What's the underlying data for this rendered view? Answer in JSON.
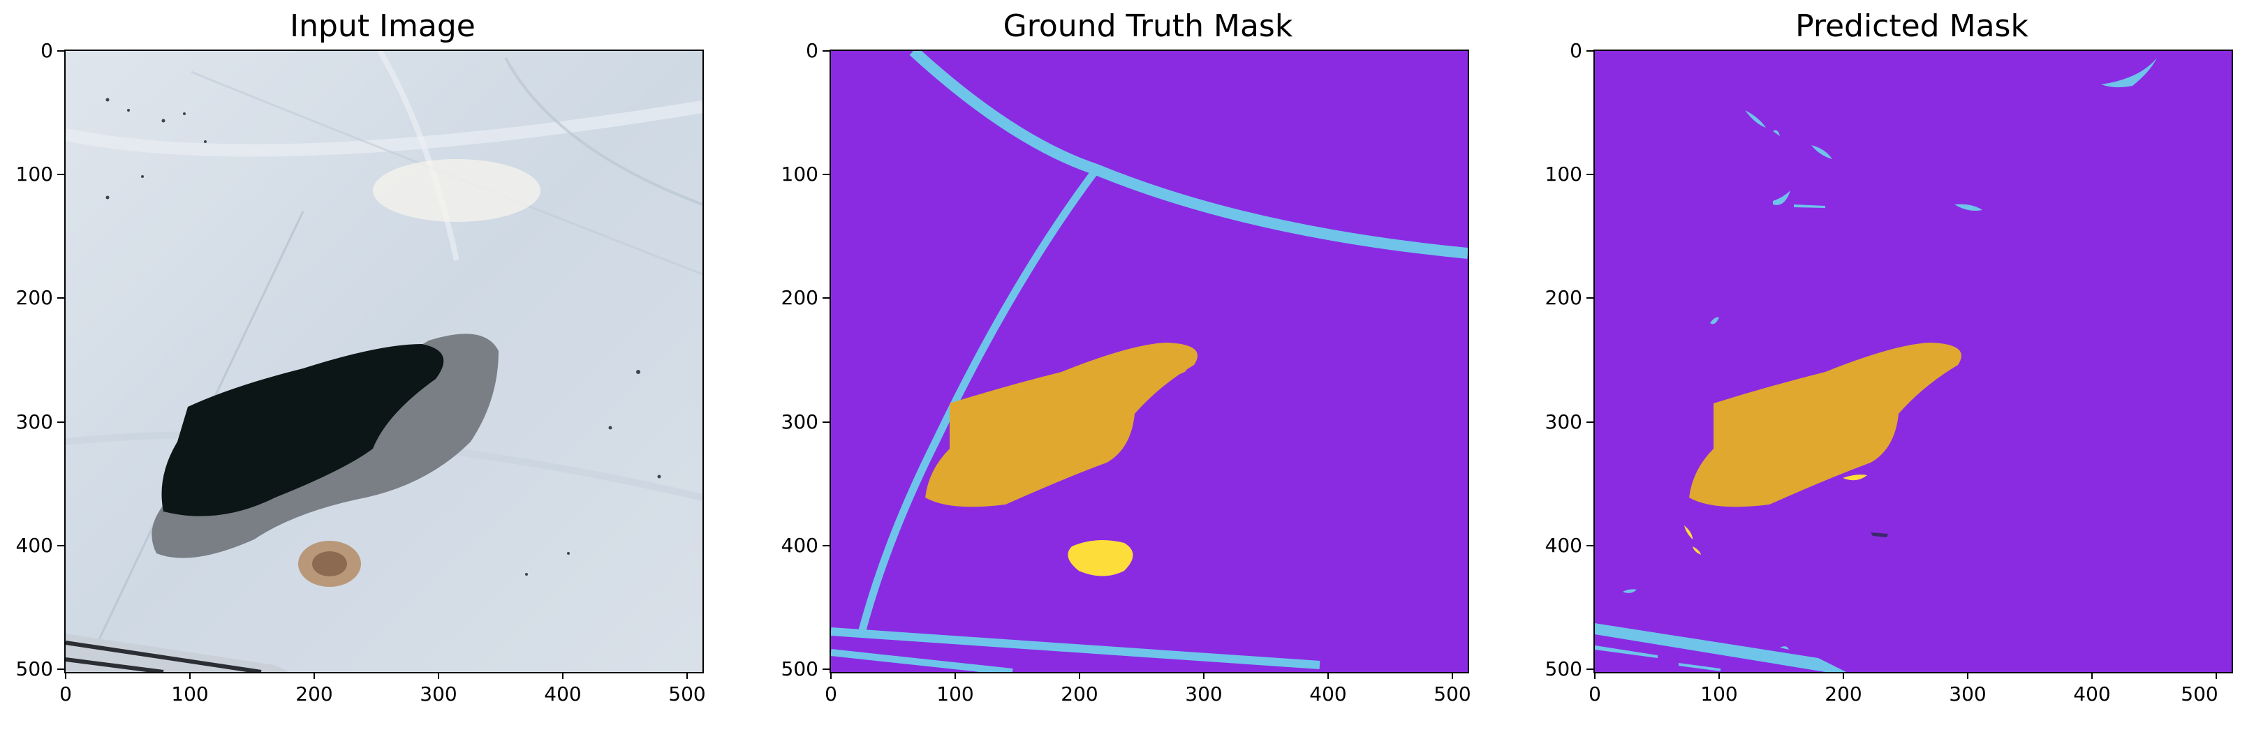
{
  "panels": [
    {
      "title": "Input Image"
    },
    {
      "title": "Ground Truth Mask"
    },
    {
      "title": "Predicted Mask"
    }
  ],
  "axes": {
    "x_ticks": [
      "0",
      "100",
      "200",
      "300",
      "400",
      "500"
    ],
    "y_ticks": [
      "0",
      "100",
      "200",
      "300",
      "400",
      "500"
    ]
  },
  "colors": {
    "background_class": "#8a2be2",
    "road_class": "#6ec5e9",
    "water_class": "#e0a82e",
    "sand_class": "#fddd3a",
    "terrain": "#d5dde6",
    "water_body": "#0c1616"
  }
}
